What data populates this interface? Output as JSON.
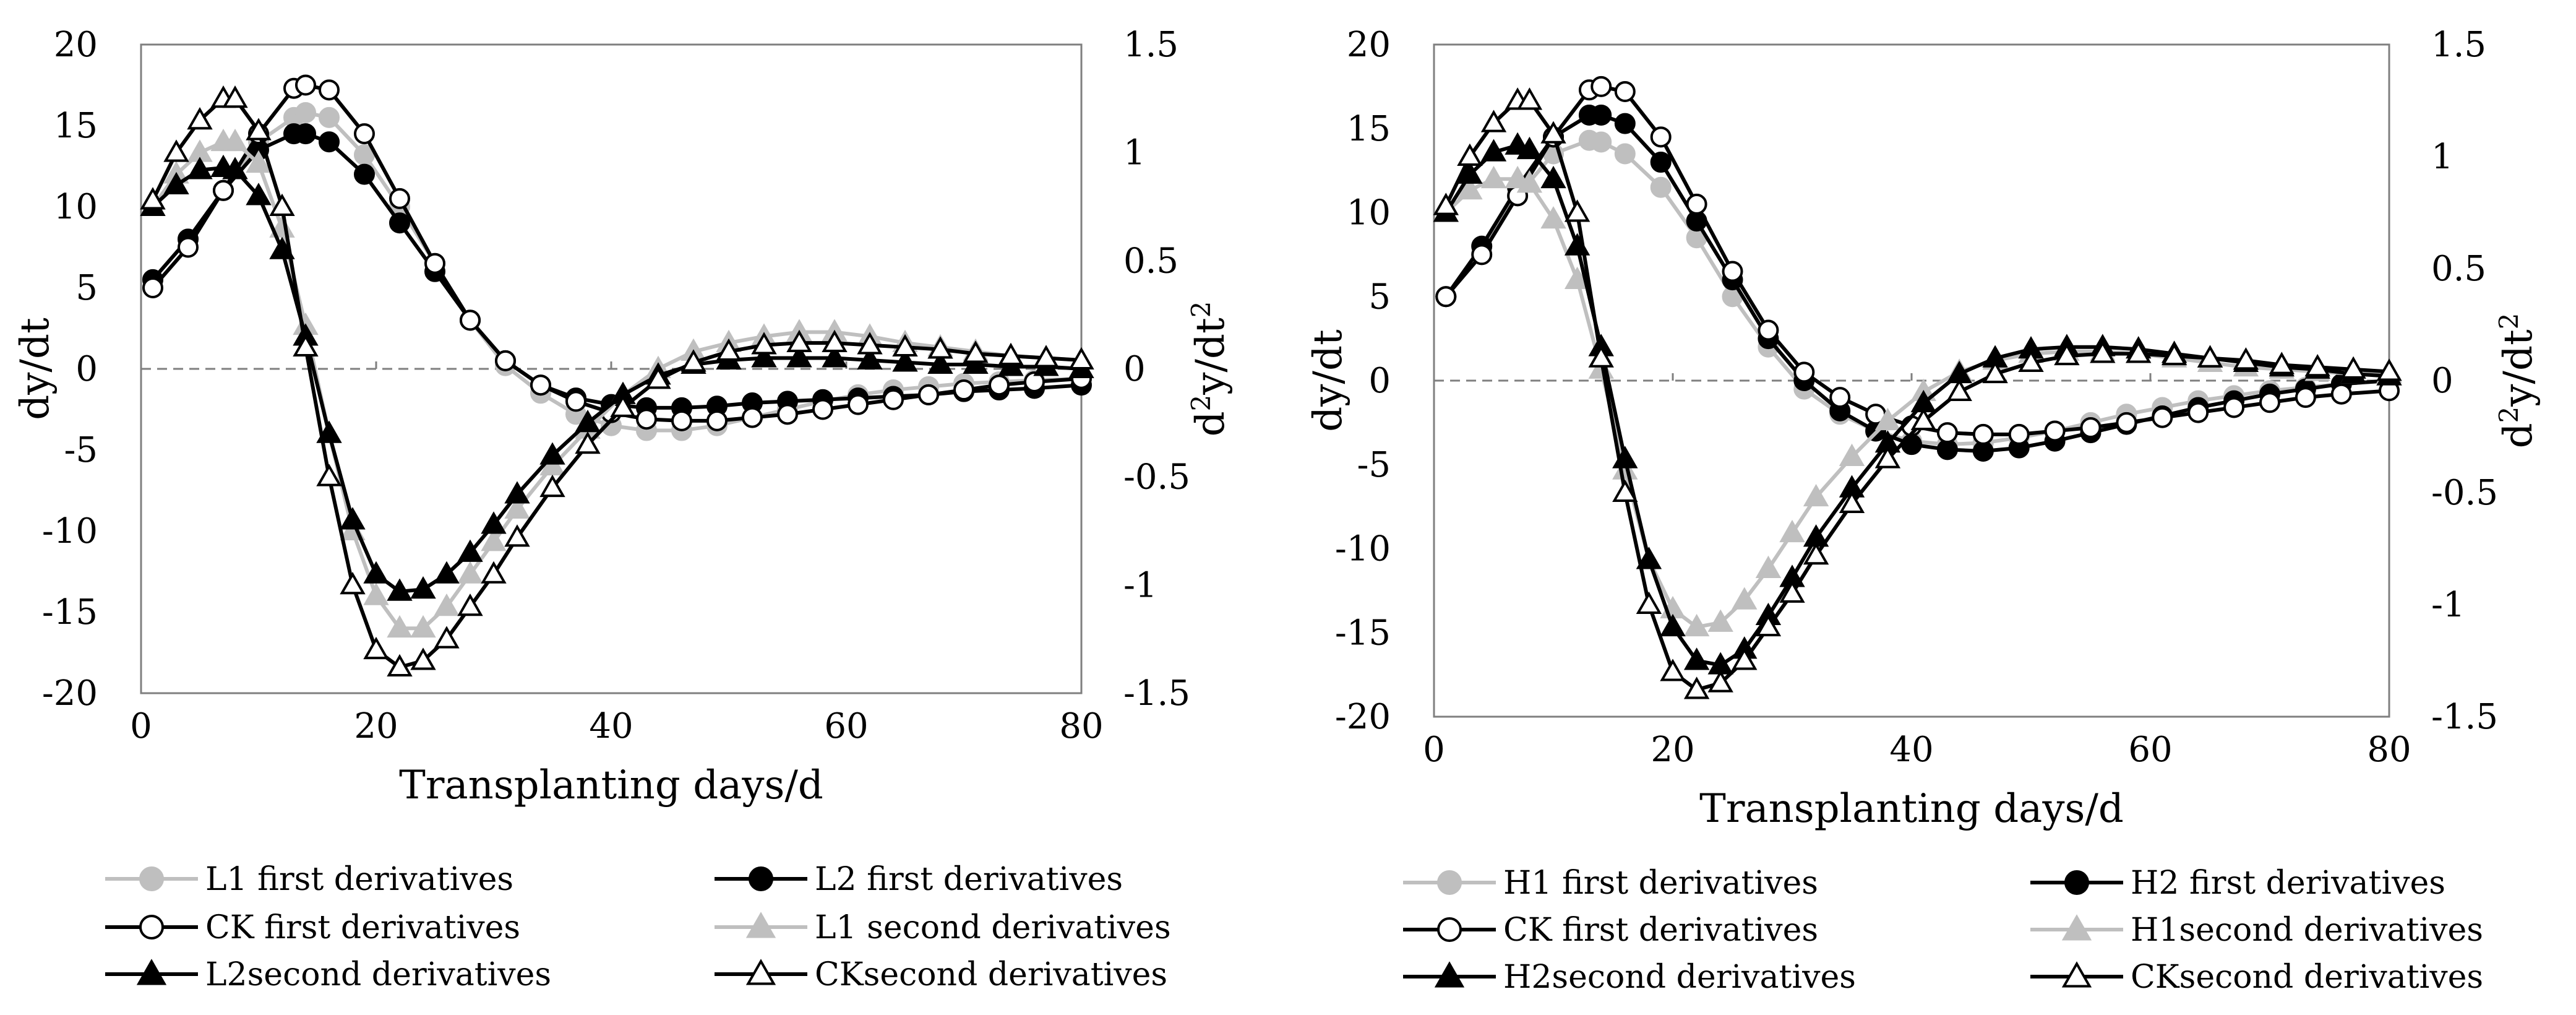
{
  "chart_data": [
    {
      "type": "line",
      "panel": "left",
      "xlabel": "Transplanting days/d",
      "ylabel_left": "dy/dt",
      "ylabel_right_base": "d",
      "ylabel_right_sup1": "2",
      "ylabel_right_mid": "y/dt",
      "ylabel_right_sup2": "2",
      "xlim": [
        0,
        80
      ],
      "ylim_left": [
        -20,
        20
      ],
      "ylim_right": [
        -1.5,
        1.5
      ],
      "x_ticks": [
        "0",
        "20",
        "40",
        "60",
        "80"
      ],
      "y_left_ticks": [
        "20",
        "15",
        "10",
        "5",
        "0",
        "-5",
        "-10",
        "-15",
        "-20"
      ],
      "y_right_ticks": [
        "1.5",
        "1",
        "0.5",
        "0",
        "-0.5",
        "-1",
        "-1.5"
      ],
      "series": [
        {
          "name": "L1 first derivatives",
          "axis": "left",
          "color": "#bfbfbf",
          "marker": "circle",
          "fill": "#bfbfbf",
          "x": [
            1,
            4,
            7,
            10,
            13,
            14,
            16,
            19,
            22,
            25,
            28,
            31,
            34,
            37,
            40,
            43,
            46,
            49,
            52,
            55,
            58,
            61,
            64,
            67,
            70,
            73,
            76,
            80
          ],
          "y": [
            5.5,
            8,
            11,
            14,
            15.5,
            15.8,
            15.5,
            13.2,
            10,
            6.5,
            3,
            0.2,
            -1.5,
            -2.8,
            -3.5,
            -3.8,
            -3.8,
            -3.5,
            -3,
            -2.5,
            -2,
            -1.6,
            -1.3,
            -1.1,
            -0.9,
            -0.8,
            -0.7,
            -0.6
          ]
        },
        {
          "name": "L2 first derivatives",
          "axis": "left",
          "color": "#000000",
          "marker": "circle",
          "fill": "#000000",
          "x": [
            1,
            4,
            7,
            10,
            13,
            14,
            16,
            19,
            22,
            25,
            28,
            31,
            34,
            37,
            40,
            43,
            46,
            49,
            52,
            55,
            58,
            61,
            64,
            67,
            70,
            73,
            76,
            80
          ],
          "y": [
            5.5,
            8,
            11,
            13.5,
            14.5,
            14.5,
            14,
            12,
            9,
            6,
            3,
            0.5,
            -1,
            -1.8,
            -2.2,
            -2.4,
            -2.4,
            -2.3,
            -2.1,
            -2,
            -1.9,
            -1.8,
            -1.7,
            -1.6,
            -1.4,
            -1.3,
            -1.2,
            -1
          ]
        },
        {
          "name": "CK first derivatives",
          "axis": "left",
          "color": "#000000",
          "marker": "circle",
          "fill": "#ffffff",
          "x": [
            1,
            4,
            7,
            10,
            13,
            14,
            16,
            19,
            22,
            25,
            28,
            31,
            34,
            37,
            40,
            43,
            46,
            49,
            52,
            55,
            58,
            61,
            64,
            67,
            70,
            73,
            76,
            80
          ],
          "y": [
            5,
            7.5,
            11,
            14.5,
            17.3,
            17.5,
            17.2,
            14.5,
            10.5,
            6.5,
            3,
            0.5,
            -1,
            -2,
            -2.7,
            -3.1,
            -3.2,
            -3.2,
            -3,
            -2.8,
            -2.5,
            -2.2,
            -1.9,
            -1.6,
            -1.3,
            -1,
            -0.8,
            -0.6
          ]
        },
        {
          "name": "L1 second derivatives",
          "axis": "right",
          "color": "#bfbfbf",
          "marker": "triangle",
          "fill": "#bfbfbf",
          "x": [
            1,
            3,
            5,
            7,
            8,
            10,
            12,
            14,
            16,
            18,
            20,
            22,
            24,
            26,
            28,
            30,
            32,
            35,
            38,
            41,
            44,
            47,
            50,
            53,
            56,
            59,
            62,
            65,
            68,
            71,
            74,
            77,
            80
          ],
          "y": [
            0.75,
            0.9,
            1,
            1.05,
            1.05,
            0.95,
            0.65,
            0.2,
            -0.3,
            -0.75,
            -1.05,
            -1.2,
            -1.2,
            -1.1,
            -0.95,
            -0.8,
            -0.65,
            -0.45,
            -0.28,
            -0.12,
            0,
            0.08,
            0.12,
            0.15,
            0.17,
            0.17,
            0.15,
            0.12,
            0.1,
            0.08,
            0.06,
            0.05,
            0.04
          ]
        },
        {
          "name": "L2second derivatives",
          "axis": "right",
          "color": "#000000",
          "marker": "triangle",
          "fill": "#000000",
          "x": [
            1,
            3,
            5,
            7,
            8,
            10,
            12,
            14,
            16,
            18,
            20,
            22,
            24,
            26,
            28,
            30,
            32,
            35,
            38,
            41,
            44,
            47,
            50,
            53,
            56,
            59,
            62,
            65,
            68,
            71,
            74,
            77,
            80
          ],
          "y": [
            0.75,
            0.85,
            0.92,
            0.93,
            0.92,
            0.8,
            0.55,
            0.15,
            -0.3,
            -0.7,
            -0.95,
            -1.03,
            -1.02,
            -0.95,
            -0.85,
            -0.72,
            -0.58,
            -0.4,
            -0.25,
            -0.12,
            -0.03,
            0.02,
            0.04,
            0.05,
            0.05,
            0.05,
            0.04,
            0.03,
            0.02,
            0.02,
            0.01,
            0.01,
            0
          ]
        },
        {
          "name": "CKsecond derivatives",
          "axis": "right",
          "color": "#000000",
          "marker": "triangle",
          "fill": "#ffffff",
          "x": [
            1,
            3,
            5,
            7,
            8,
            10,
            12,
            14,
            16,
            18,
            20,
            22,
            24,
            26,
            28,
            30,
            32,
            35,
            38,
            41,
            44,
            47,
            50,
            53,
            56,
            59,
            62,
            65,
            68,
            71,
            74,
            77,
            80
          ],
          "y": [
            0.78,
            1,
            1.15,
            1.25,
            1.25,
            1.1,
            0.75,
            0.1,
            -0.5,
            -1,
            -1.3,
            -1.38,
            -1.35,
            -1.25,
            -1.1,
            -0.95,
            -0.78,
            -0.55,
            -0.35,
            -0.18,
            -0.05,
            0.03,
            0.08,
            0.11,
            0.12,
            0.12,
            0.11,
            0.1,
            0.09,
            0.07,
            0.06,
            0.05,
            0.04
          ]
        }
      ],
      "legend": [
        {
          "label": "L1 first derivatives",
          "color": "#bfbfbf",
          "marker": "circle",
          "fill": "#bfbfbf"
        },
        {
          "label": "L2 first derivatives",
          "color": "#000000",
          "marker": "circle",
          "fill": "#000000"
        },
        {
          "label": "CK first derivatives",
          "color": "#000000",
          "marker": "circle",
          "fill": "#ffffff"
        },
        {
          "label": "L1 second derivatives",
          "color": "#bfbfbf",
          "marker": "triangle",
          "fill": "#bfbfbf"
        },
        {
          "label": "L2second derivatives",
          "color": "#000000",
          "marker": "triangle",
          "fill": "#000000"
        },
        {
          "label": "CKsecond derivatives",
          "color": "#000000",
          "marker": "triangle",
          "fill": "#ffffff"
        }
      ]
    },
    {
      "type": "line",
      "panel": "right",
      "xlabel": "Transplanting days/d",
      "ylabel_left": "dy/dt",
      "ylabel_right_base": "d",
      "ylabel_right_sup1": "2",
      "ylabel_right_mid": "y/dt",
      "ylabel_right_sup2": "2",
      "xlim": [
        0,
        80
      ],
      "ylim_left": [
        -20,
        20
      ],
      "ylim_right": [
        -1.5,
        1.5
      ],
      "x_ticks": [
        "0",
        "20",
        "40",
        "60",
        "80"
      ],
      "y_left_ticks": [
        "20",
        "15",
        "10",
        "5",
        "0",
        "-5",
        "-10",
        "-15",
        "-20"
      ],
      "y_right_ticks": [
        "1.5",
        "1",
        "0.5",
        "0",
        "-0.5",
        "-1",
        "-1.5"
      ],
      "series": [
        {
          "name": "H1 first derivatives",
          "axis": "left",
          "color": "#bfbfbf",
          "marker": "circle",
          "fill": "#bfbfbf",
          "x": [
            1,
            4,
            7,
            10,
            13,
            14,
            16,
            19,
            22,
            25,
            28,
            31,
            34,
            37,
            40,
            43,
            46,
            49,
            52,
            55,
            58,
            61,
            64,
            67,
            70,
            73,
            76,
            80
          ],
          "y": [
            5,
            8,
            11,
            13.5,
            14.3,
            14.2,
            13.5,
            11.5,
            8.5,
            5,
            2,
            -0.5,
            -2,
            -3,
            -3.6,
            -3.8,
            -3.7,
            -3.4,
            -3,
            -2.5,
            -2,
            -1.6,
            -1.2,
            -0.9,
            -0.6,
            -0.4,
            -0.2,
            0
          ]
        },
        {
          "name": "H2 first derivatives",
          "axis": "left",
          "color": "#000000",
          "marker": "circle",
          "fill": "#000000",
          "x": [
            1,
            4,
            7,
            10,
            13,
            14,
            16,
            19,
            22,
            25,
            28,
            31,
            34,
            37,
            40,
            43,
            46,
            49,
            52,
            55,
            58,
            61,
            64,
            67,
            70,
            73,
            76,
            80
          ],
          "y": [
            5,
            8,
            11.5,
            14.5,
            15.8,
            15.8,
            15.3,
            13,
            9.5,
            6,
            2.5,
            0,
            -1.8,
            -3,
            -3.8,
            -4.1,
            -4.2,
            -4,
            -3.6,
            -3.1,
            -2.6,
            -2.1,
            -1.6,
            -1.2,
            -0.8,
            -0.5,
            -0.2,
            0
          ]
        },
        {
          "name": "CK first derivatives",
          "axis": "left",
          "color": "#000000",
          "marker": "circle",
          "fill": "#ffffff",
          "x": [
            1,
            4,
            7,
            10,
            13,
            14,
            16,
            19,
            22,
            25,
            28,
            31,
            34,
            37,
            40,
            43,
            46,
            49,
            52,
            55,
            58,
            61,
            64,
            67,
            70,
            73,
            76,
            80
          ],
          "y": [
            5,
            7.5,
            11,
            14.5,
            17.3,
            17.5,
            17.2,
            14.5,
            10.5,
            6.5,
            3,
            0.5,
            -1,
            -2,
            -2.7,
            -3.1,
            -3.2,
            -3.2,
            -3,
            -2.8,
            -2.5,
            -2.2,
            -1.9,
            -1.6,
            -1.3,
            -1,
            -0.8,
            -0.6
          ]
        },
        {
          "name": "H1second derivatives",
          "axis": "right",
          "color": "#bfbfbf",
          "marker": "triangle",
          "fill": "#bfbfbf",
          "x": [
            1,
            3,
            5,
            7,
            8,
            10,
            12,
            14,
            16,
            18,
            20,
            22,
            24,
            26,
            28,
            30,
            32,
            35,
            38,
            41,
            44,
            47,
            50,
            53,
            56,
            59,
            62,
            65,
            68,
            71,
            74,
            77,
            80
          ],
          "y": [
            0.75,
            0.85,
            0.9,
            0.9,
            0.88,
            0.72,
            0.45,
            0.05,
            -0.4,
            -0.8,
            -1.02,
            -1.1,
            -1.08,
            -0.98,
            -0.84,
            -0.68,
            -0.52,
            -0.34,
            -0.18,
            -0.05,
            0.04,
            0.09,
            0.12,
            0.13,
            0.13,
            0.12,
            0.1,
            0.08,
            0.06,
            0.05,
            0.04,
            0.03,
            0.03
          ]
        },
        {
          "name": "H2second derivatives",
          "axis": "right",
          "color": "#000000",
          "marker": "triangle",
          "fill": "#000000",
          "x": [
            1,
            3,
            5,
            7,
            8,
            10,
            12,
            14,
            16,
            18,
            20,
            22,
            24,
            26,
            28,
            30,
            32,
            35,
            38,
            41,
            44,
            47,
            50,
            53,
            56,
            59,
            62,
            65,
            68,
            71,
            74,
            77,
            80
          ],
          "y": [
            0.75,
            0.92,
            1.02,
            1.05,
            1.03,
            0.9,
            0.6,
            0.15,
            -0.35,
            -0.8,
            -1.1,
            -1.25,
            -1.27,
            -1.2,
            -1.05,
            -0.88,
            -0.7,
            -0.48,
            -0.28,
            -0.1,
            0.03,
            0.1,
            0.14,
            0.15,
            0.15,
            0.14,
            0.12,
            0.1,
            0.08,
            0.06,
            0.05,
            0.03,
            0.02
          ]
        },
        {
          "name": "CKsecond derivatives",
          "axis": "right",
          "color": "#000000",
          "marker": "triangle",
          "fill": "#ffffff",
          "x": [
            1,
            3,
            5,
            7,
            8,
            10,
            12,
            14,
            16,
            18,
            20,
            22,
            24,
            26,
            28,
            30,
            32,
            35,
            38,
            41,
            44,
            47,
            50,
            53,
            56,
            59,
            62,
            65,
            68,
            71,
            74,
            77,
            80
          ],
          "y": [
            0.78,
            1,
            1.15,
            1.25,
            1.25,
            1.1,
            0.75,
            0.1,
            -0.5,
            -1,
            -1.3,
            -1.38,
            -1.35,
            -1.25,
            -1.1,
            -0.95,
            -0.78,
            -0.55,
            -0.35,
            -0.18,
            -0.05,
            0.03,
            0.08,
            0.11,
            0.12,
            0.12,
            0.11,
            0.1,
            0.09,
            0.07,
            0.06,
            0.05,
            0.04
          ]
        }
      ],
      "legend": [
        {
          "label": "H1 first derivatives",
          "color": "#bfbfbf",
          "marker": "circle",
          "fill": "#bfbfbf"
        },
        {
          "label": "H2 first derivatives",
          "color": "#000000",
          "marker": "circle",
          "fill": "#000000"
        },
        {
          "label": "CK first derivatives",
          "color": "#000000",
          "marker": "circle",
          "fill": "#ffffff"
        },
        {
          "label": "H1second derivatives",
          "color": "#bfbfbf",
          "marker": "triangle",
          "fill": "#bfbfbf"
        },
        {
          "label": "H2second derivatives",
          "color": "#000000",
          "marker": "triangle",
          "fill": "#000000"
        },
        {
          "label": "CKsecond derivatives",
          "color": "#000000",
          "marker": "triangle",
          "fill": "#ffffff"
        }
      ]
    }
  ]
}
